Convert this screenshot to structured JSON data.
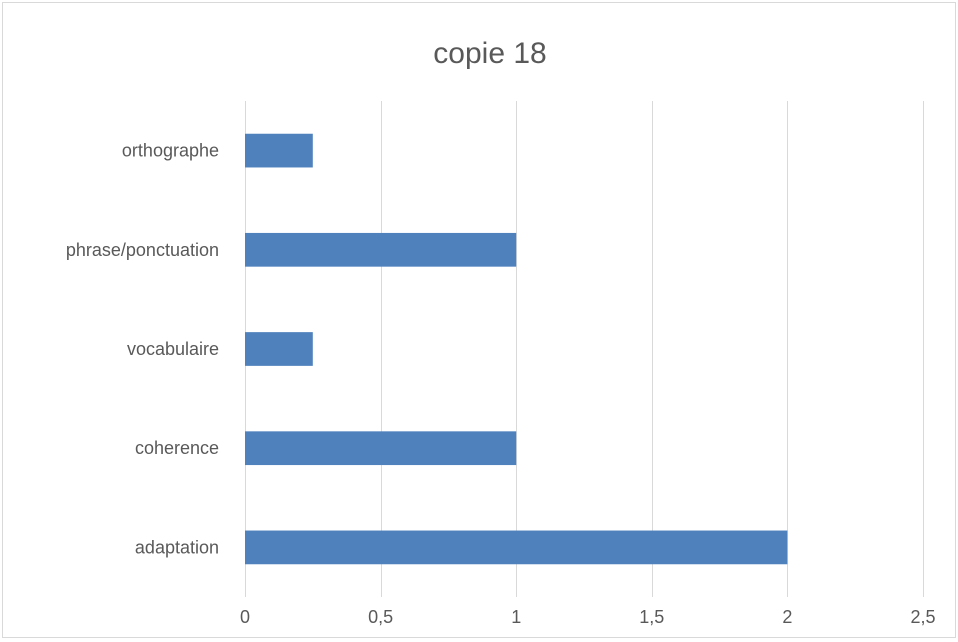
{
  "chart_data": {
    "type": "bar",
    "orientation": "horizontal",
    "title": "copie 18",
    "categories": [
      "orthographe",
      "phrase/ponctuation",
      "vocabulaire",
      "coherence",
      "adaptation"
    ],
    "values": [
      0.25,
      1,
      0.25,
      1,
      2
    ],
    "xlim": [
      0,
      2.5
    ],
    "x_ticks": [
      0,
      0.5,
      1,
      1.5,
      2,
      2.5
    ],
    "x_tick_labels": [
      "0",
      "0,5",
      "1",
      "1,5",
      "2",
      "2,5"
    ],
    "xlabel": "",
    "ylabel": "",
    "grid": "vertical",
    "legend": "none",
    "bar_color": "#4f81bd",
    "grid_color": "#d9d9d9"
  }
}
